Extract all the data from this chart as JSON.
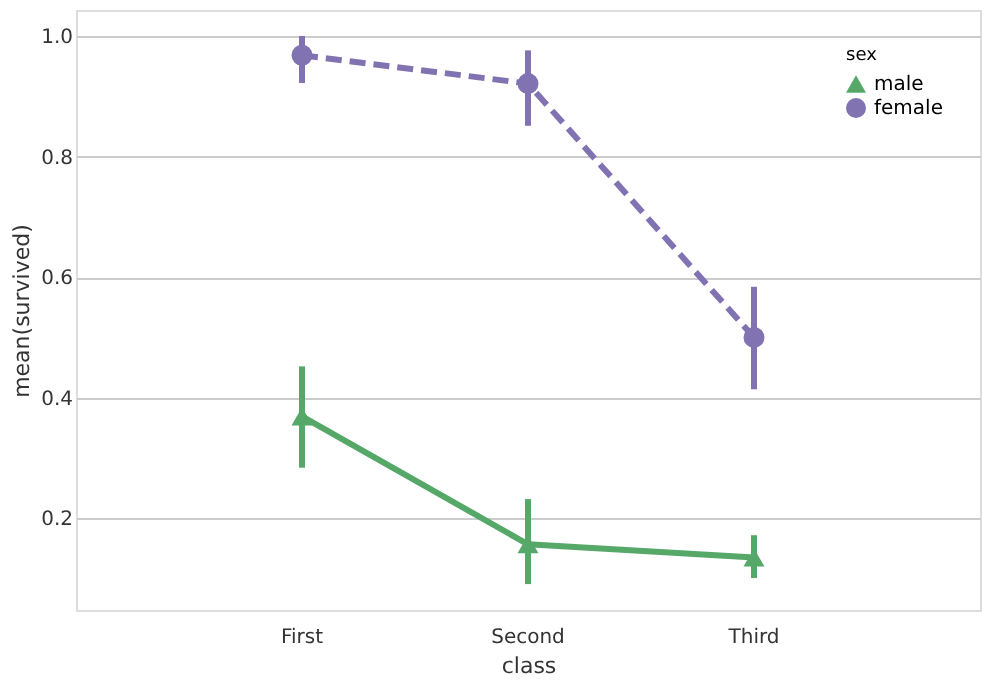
{
  "chart_data": {
    "type": "line",
    "xlabel": "class",
    "ylabel": "mean(survived)",
    "legend_title": "sex",
    "categories": [
      "First",
      "Second",
      "Third"
    ],
    "series": [
      {
        "name": "male",
        "color": "#55a868",
        "values": [
          0.369,
          0.157,
          0.135
        ],
        "errors": [
          [
            0.284,
            0.452
          ],
          [
            0.091,
            0.232
          ],
          [
            0.101,
            0.172
          ]
        ],
        "marker": "triangle",
        "line_style": "solid"
      },
      {
        "name": "female",
        "color": "#8172b2",
        "values": [
          0.968,
          0.921,
          0.5
        ],
        "errors": [
          [
            0.922,
            1.0
          ],
          [
            0.851,
            0.976
          ],
          [
            0.414,
            0.584
          ]
        ],
        "marker": "circle",
        "line_style": "dashed"
      }
    ],
    "ylim": [
      0.048,
      1.043
    ],
    "yticks": [
      0.2,
      0.4,
      0.6,
      0.8,
      {
        "value": 1,
        "label": "1.0"
      }
    ],
    "grid": "y",
    "legend": "top right"
  }
}
